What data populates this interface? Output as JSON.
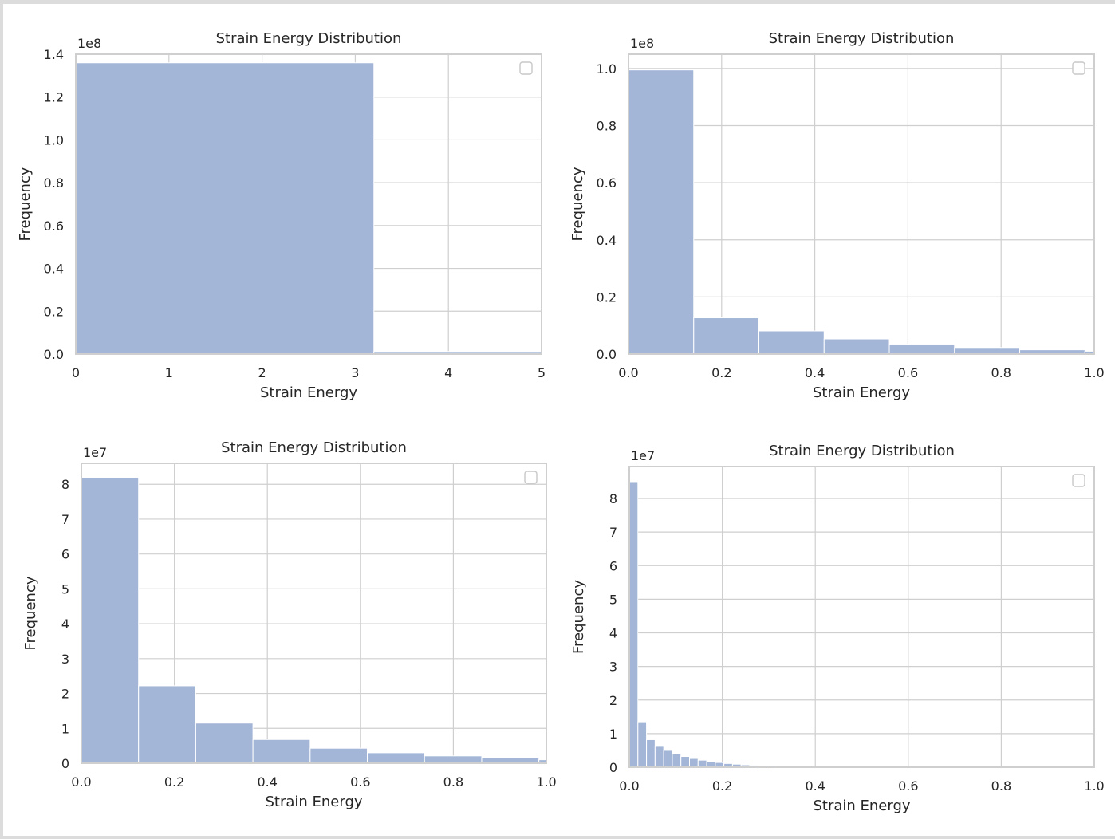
{
  "colors": {
    "bar_fill": "#a3b6d8",
    "bar_edge": "#ffffff",
    "grid": "#cfcfcf",
    "axes_frame": "#cfcfcf",
    "text": "#262626",
    "legend_border": "#c8c8c8"
  },
  "chart_data": [
    {
      "type": "bar",
      "title": "Strain Energy Distribution",
      "xlabel": "Strain Energy",
      "ylabel": "Frequency",
      "offset_label": "1e8",
      "xlim": [
        0,
        5
      ],
      "ylim": [
        0,
        1.4
      ],
      "xticks": [
        0,
        1,
        2,
        3,
        4,
        5
      ],
      "xtick_labels": [
        "0",
        "1",
        "2",
        "3",
        "4",
        "5"
      ],
      "yticks": [
        0,
        0.2,
        0.4,
        0.6,
        0.8,
        1.0,
        1.2,
        1.4
      ],
      "ytick_labels": [
        "0.0",
        "0.2",
        "0.4",
        "0.6",
        "0.8",
        "1.0",
        "1.2",
        "1.4"
      ],
      "bins": [
        [
          0,
          3.2
        ],
        [
          3.2,
          6.4
        ]
      ],
      "values": [
        1.36,
        0.012
      ],
      "grid": true,
      "legend": "top-right (empty)"
    },
    {
      "type": "bar",
      "title": "Strain Energy Distribution",
      "xlabel": "Strain Energy",
      "ylabel": "Frequency",
      "offset_label": "1e8",
      "xlim": [
        0,
        1.0
      ],
      "ylim": [
        0,
        1.05
      ],
      "xticks": [
        0,
        0.2,
        0.4,
        0.6,
        0.8,
        1.0
      ],
      "xtick_labels": [
        "0.0",
        "0.2",
        "0.4",
        "0.6",
        "0.8",
        "1.0"
      ],
      "yticks": [
        0,
        0.2,
        0.4,
        0.6,
        0.8,
        1.0
      ],
      "ytick_labels": [
        "0.0",
        "0.2",
        "0.4",
        "0.6",
        "0.8",
        "1.0"
      ],
      "bins": [
        [
          0,
          0.14
        ],
        [
          0.14,
          0.28
        ],
        [
          0.28,
          0.42
        ],
        [
          0.42,
          0.56
        ],
        [
          0.56,
          0.7
        ],
        [
          0.7,
          0.84
        ],
        [
          0.84,
          0.98
        ],
        [
          0.98,
          1.12
        ]
      ],
      "values": [
        0.995,
        0.127,
        0.081,
        0.053,
        0.035,
        0.023,
        0.015,
        0.01
      ],
      "grid": true,
      "legend": "top-right (empty)"
    },
    {
      "type": "bar",
      "title": "Strain Energy Distribution",
      "xlabel": "Strain Energy",
      "ylabel": "Frequency",
      "offset_label": "1e7",
      "xlim": [
        0,
        1.0
      ],
      "ylim": [
        0,
        8.6
      ],
      "xticks": [
        0,
        0.2,
        0.4,
        0.6,
        0.8,
        1.0
      ],
      "xtick_labels": [
        "0.0",
        "0.2",
        "0.4",
        "0.6",
        "0.8",
        "1.0"
      ],
      "yticks": [
        0,
        1,
        2,
        3,
        4,
        5,
        6,
        7,
        8
      ],
      "ytick_labels": [
        "0",
        "1",
        "2",
        "3",
        "4",
        "5",
        "6",
        "7",
        "8"
      ],
      "bins": [
        [
          0,
          0.123
        ],
        [
          0.123,
          0.246
        ],
        [
          0.246,
          0.369
        ],
        [
          0.369,
          0.492
        ],
        [
          0.492,
          0.615
        ],
        [
          0.615,
          0.738
        ],
        [
          0.738,
          0.861
        ],
        [
          0.861,
          0.984
        ],
        [
          0.984,
          1.107
        ]
      ],
      "values": [
        8.2,
        2.22,
        1.15,
        0.68,
        0.43,
        0.3,
        0.21,
        0.15,
        0.1
      ],
      "grid": true,
      "legend": "top-right (empty)"
    },
    {
      "type": "bar",
      "title": "Strain Energy Distribution",
      "xlabel": "Strain Energy",
      "ylabel": "Frequency",
      "offset_label": "1e7",
      "xlim": [
        0,
        1.0
      ],
      "ylim": [
        0,
        8.95
      ],
      "xticks": [
        0,
        0.2,
        0.4,
        0.6,
        0.8,
        1.0
      ],
      "xtick_labels": [
        "0.0",
        "0.2",
        "0.4",
        "0.6",
        "0.8",
        "1.0"
      ],
      "yticks": [
        0,
        1,
        2,
        3,
        4,
        5,
        6,
        7,
        8
      ],
      "ytick_labels": [
        "0",
        "1",
        "2",
        "3",
        "4",
        "5",
        "6",
        "7",
        "8"
      ],
      "bin_width": 0.0185,
      "values": [
        8.5,
        1.35,
        0.82,
        0.62,
        0.5,
        0.4,
        0.32,
        0.26,
        0.21,
        0.17,
        0.14,
        0.11,
        0.09,
        0.07,
        0.06,
        0.05,
        0.04,
        0.03,
        0.02,
        0.02,
        0.015,
        0.012,
        0.01,
        0.008,
        0.006,
        0.005,
        0.004,
        0.003,
        0.003,
        0.002
      ],
      "grid": true,
      "legend": "top-right (empty)"
    }
  ]
}
